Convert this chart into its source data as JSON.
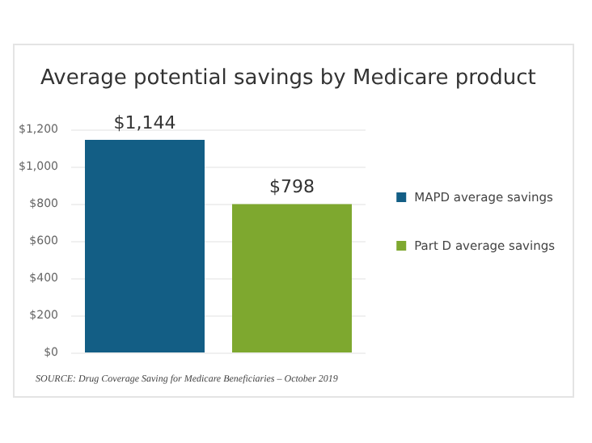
{
  "chart_data": {
    "type": "bar",
    "title": "Average potential savings by Medicare product",
    "categories": [
      null,
      null
    ],
    "series": [
      {
        "name": "MAPD average savings",
        "color": "#135e85",
        "values": [
          1144,
          null
        ],
        "value_labels": [
          "$1,144",
          null
        ]
      },
      {
        "name": "Part D average savings",
        "color": "#7ea82f",
        "values": [
          null,
          798
        ],
        "value_labels": [
          null,
          "$798"
        ]
      }
    ],
    "ylim": [
      0,
      1200
    ],
    "yticks": [
      {
        "value": 0,
        "label": "$0"
      },
      {
        "value": 200,
        "label": "$200"
      },
      {
        "value": 400,
        "label": "$400"
      },
      {
        "value": 600,
        "label": "$600"
      },
      {
        "value": 800,
        "label": "$800"
      },
      {
        "value": 1000,
        "label": "$1,000"
      },
      {
        "value": 1200,
        "label": "$1,200"
      }
    ],
    "grid": "y",
    "legend": "right",
    "annotations": [
      "SOURCE: Drug Coverage Saving for Medicare Beneficiaries – October 2019"
    ]
  }
}
